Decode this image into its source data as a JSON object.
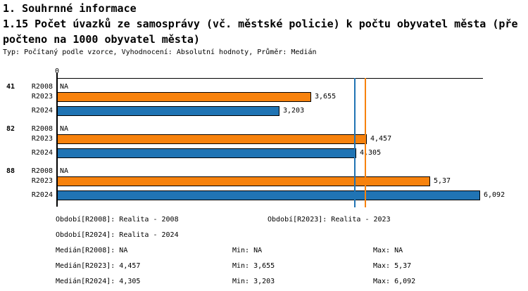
{
  "header": {
    "section_title": "1. Souhrnné informace",
    "indicator_title_line1": "1.15 Počet úvazků ze samosprávy (vč. městské policie) k počtu obyvatel města (pře",
    "indicator_title_line2": "počteno na 1000 obyvatel města)",
    "meta": "Typ: Počítaný podle vzorce, Vyhodnocení: Absolutní hodnoty, Průměr: Medián"
  },
  "chart_data": {
    "type": "bar",
    "orientation": "horizontal",
    "title": "1.15 Počet úvazků ze samosprávy (vč. městské policie) k počtu obyvatel města (přepočteno na 1000 obyvatel města)",
    "axis": {
      "zero_label": "0",
      "xlim": [
        0,
        6.13
      ],
      "grid": false
    },
    "series_colors": {
      "R2008": null,
      "R2023": "#F7820D",
      "R2024": "#2074B4"
    },
    "groups": [
      {
        "label": "41",
        "bars": [
          {
            "series": "R2008",
            "value": null,
            "value_label": "NA"
          },
          {
            "series": "R2023",
            "value": 3.655,
            "value_label": "3,655"
          },
          {
            "series": "R2024",
            "value": 3.203,
            "value_label": "3,203"
          }
        ]
      },
      {
        "label": "82",
        "bars": [
          {
            "series": "R2008",
            "value": null,
            "value_label": "NA"
          },
          {
            "series": "R2023",
            "value": 4.457,
            "value_label": "4,457"
          },
          {
            "series": "R2024",
            "value": 4.305,
            "value_label": "4,305"
          }
        ]
      },
      {
        "label": "88",
        "bars": [
          {
            "series": "R2008",
            "value": null,
            "value_label": "NA"
          },
          {
            "series": "R2023",
            "value": 5.37,
            "value_label": "5,37"
          },
          {
            "series": "R2024",
            "value": 6.092,
            "value_label": "6,092"
          }
        ]
      }
    ],
    "reference_lines": [
      {
        "name": "median-R2023",
        "value": 4.457,
        "color": "#F7820D"
      },
      {
        "name": "median-R2024",
        "value": 4.305,
        "color": "#2074B4"
      }
    ],
    "legend_position": "none"
  },
  "stats": {
    "obdobi": {
      "r2008": "Období[R2008]: Realita - 2008",
      "r2023": "Období[R2023]: Realita - 2023",
      "r2024": "Období[R2024]: Realita - 2024"
    },
    "median": {
      "r2008": "Medián[R2008]: NA",
      "r2023": "Medián[R2023]: 4,457",
      "r2024": "Medián[R2024]: 4,305"
    },
    "min": {
      "r2008": "Min: NA",
      "r2023": "Min: 3,655",
      "r2024": "Min: 3,203"
    },
    "max": {
      "r2008": "Max: NA",
      "r2023": "Max: 5,37",
      "r2024": "Max: 6,092"
    }
  }
}
